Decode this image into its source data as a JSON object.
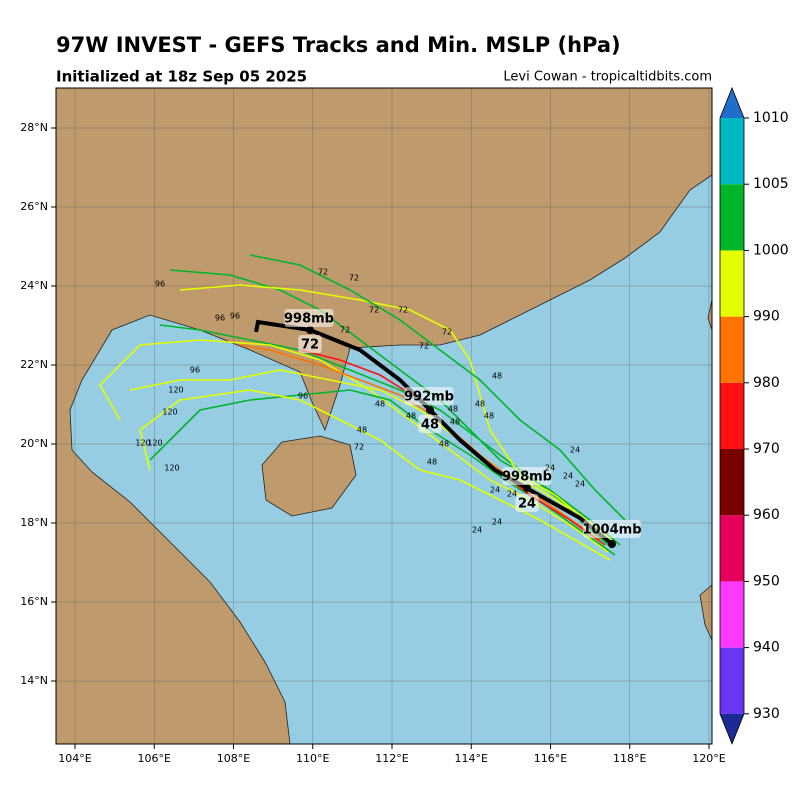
{
  "header": {
    "title": "97W INVEST - GEFS Tracks and Min. MSLP (hPa)",
    "subtitle": "Initialized at 18z Sep 05 2025",
    "credit": "Levi Cowan - tropicaltidbits.com"
  },
  "map": {
    "lon_ticks": [
      {
        "value": 104,
        "label": "104°E"
      },
      {
        "value": 106,
        "label": "106°E"
      },
      {
        "value": 108,
        "label": "108°E"
      },
      {
        "value": 110,
        "label": "110°E"
      },
      {
        "value": 112,
        "label": "112°E"
      },
      {
        "value": 114,
        "label": "114°E"
      },
      {
        "value": 116,
        "label": "116°E"
      },
      {
        "value": 118,
        "label": "118°E"
      },
      {
        "value": 120,
        "label": "120°E"
      }
    ],
    "lat_ticks": [
      {
        "value": 14,
        "label": "14°N"
      },
      {
        "value": 16,
        "label": "16°N"
      },
      {
        "value": 18,
        "label": "18°N"
      },
      {
        "value": 20,
        "label": "20°N"
      },
      {
        "value": 22,
        "label": "22°N"
      },
      {
        "value": 24,
        "label": "24°N"
      },
      {
        "value": 26,
        "label": "26°N"
      },
      {
        "value": 28,
        "label": "28°N"
      }
    ],
    "mean_labels": [
      "1004mb",
      "998mb",
      "24",
      "992mb",
      "48",
      "998mb",
      "72"
    ],
    "member_labels": [
      "24",
      "24",
      "24",
      "24",
      "24",
      "24",
      "24",
      "24",
      "48",
      "48",
      "48",
      "48",
      "48",
      "48",
      "48",
      "48",
      "48",
      "48",
      "72",
      "72",
      "72",
      "72",
      "72",
      "72",
      "72",
      "72",
      "96",
      "96",
      "96",
      "96",
      "96",
      "120",
      "120",
      "120",
      "120",
      "120"
    ]
  },
  "colorbar": {
    "ticks": [
      930,
      940,
      950,
      960,
      970,
      980,
      990,
      1000,
      1005,
      1010
    ],
    "colors": [
      "#6a35f5",
      "#ff38ff",
      "#e6005c",
      "#7a0000",
      "#ff1111",
      "#ff7300",
      "#e3ff00",
      "#00b52a",
      "#00b8c2"
    ],
    "under": "#1c2a96",
    "over": "#1f6ec9"
  }
}
